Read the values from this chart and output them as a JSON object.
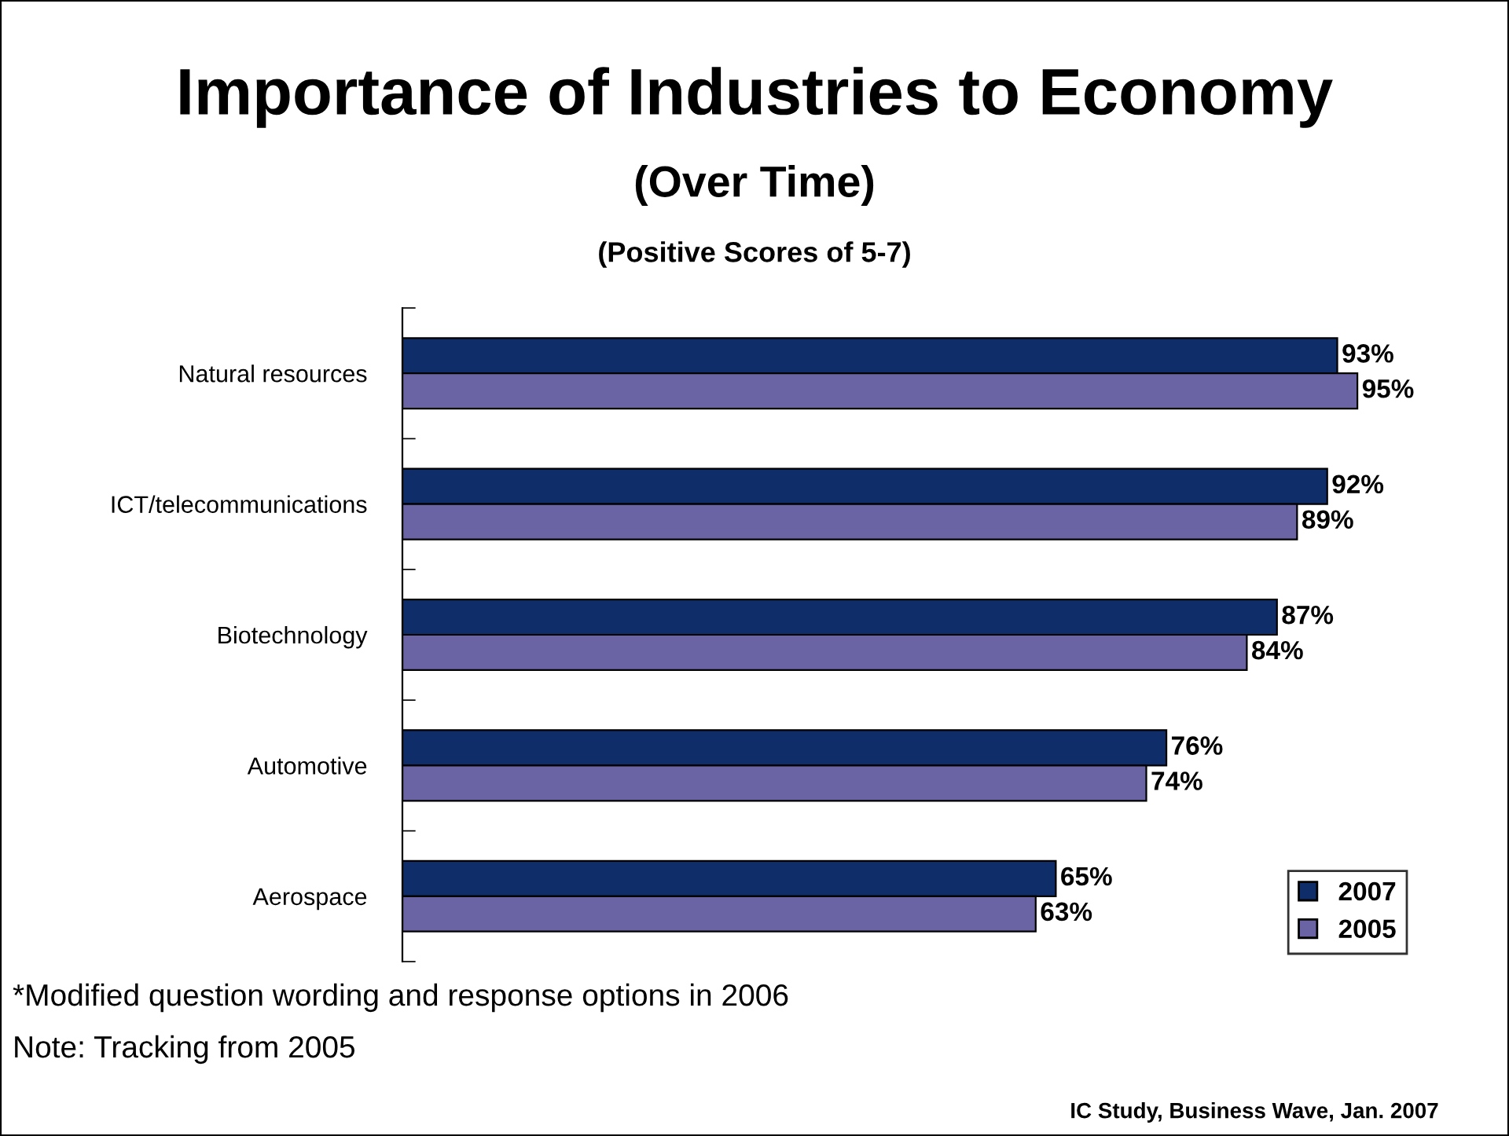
{
  "chart_data": {
    "type": "bar",
    "orientation": "horizontal",
    "title": "Importance of Industries to Economy",
    "subtitle": "(Over Time)",
    "categories": [
      "Natural resources",
      "ICT/telecommunications",
      "Biotechnology",
      "Automotive",
      "Aerospace"
    ],
    "series": [
      {
        "name": "2007",
        "color": "#0f2d69",
        "values": [
          93,
          92,
          87,
          76,
          65
        ],
        "value_labels": [
          "93%",
          "92%",
          "87%",
          "76%",
          "65%"
        ]
      },
      {
        "name": "2005",
        "color": "#6b64a4",
        "values": [
          95,
          89,
          84,
          74,
          63
        ],
        "value_labels": [
          "95%",
          "89%",
          "84%",
          "74%",
          "63%"
        ]
      }
    ],
    "legend": "bottom right",
    "grid": false,
    "annotations": [
      "(Positive Scores of 5-7)",
      "*Modified question wording and response options in 2006",
      "Note: Tracking from 2005",
      "IC Study, Business Wave, Jan. 2007"
    ]
  }
}
